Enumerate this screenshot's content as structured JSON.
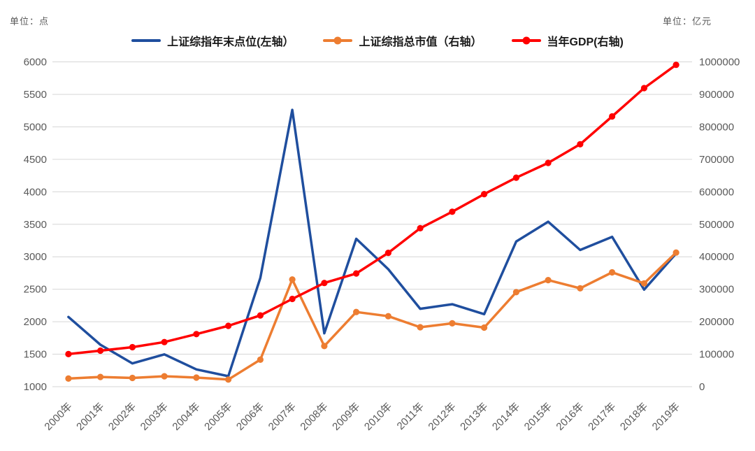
{
  "units": {
    "left": "单位：点",
    "right": "单位：亿元"
  },
  "colors": {
    "gridline": "#D6D6D6",
    "tick_text": "#595959",
    "legend_text": "#1a1a1a",
    "background": "#FFFFFF"
  },
  "chart_data": {
    "type": "line",
    "title": "",
    "legend_position": "top",
    "grid": true,
    "categories": [
      "2000年",
      "2001年",
      "2002年",
      "2003年",
      "2004年",
      "2005年",
      "2006年",
      "2007年",
      "2008年",
      "2009年",
      "2010年",
      "2011年",
      "2012年",
      "2013年",
      "2014年",
      "2015年",
      "2016年",
      "2017年",
      "2018年",
      "2019年"
    ],
    "left_axis": {
      "unit": "单位：点",
      "min": 1000,
      "max": 6000,
      "step": 500
    },
    "right_axis": {
      "unit": "单位：亿元",
      "min": 0,
      "max": 1000000,
      "step": 100000
    },
    "series": [
      {
        "name": "上证综指年末点位(左轴）",
        "axis": "left",
        "color": "#1F4E9E",
        "marker": false,
        "values": [
          2073,
          1646,
          1358,
          1497,
          1266,
          1161,
          2675,
          5262,
          1821,
          3277,
          2808,
          2199,
          2269,
          2116,
          3235,
          3539,
          3104,
          3307,
          2494,
          3050
        ]
      },
      {
        "name": "上证综指总市值（右轴）",
        "axis": "right",
        "color": "#ED7D31",
        "marker": true,
        "values": [
          25000,
          30000,
          27000,
          32000,
          28000,
          22000,
          83000,
          330000,
          125000,
          230000,
          217000,
          183000,
          195000,
          182000,
          291000,
          328000,
          303000,
          352000,
          318000,
          413000
        ]
      },
      {
        "name": "当年GDP(右轴)",
        "axis": "right",
        "color": "#FF0000",
        "marker": true,
        "values": [
          100280,
          110863,
          121717,
          137422,
          161840,
          187319,
          219439,
          270092,
          319245,
          348518,
          412119,
          487940,
          538580,
          592963,
          643563,
          688858,
          746395,
          832036,
          919281,
          990865
        ]
      }
    ]
  }
}
